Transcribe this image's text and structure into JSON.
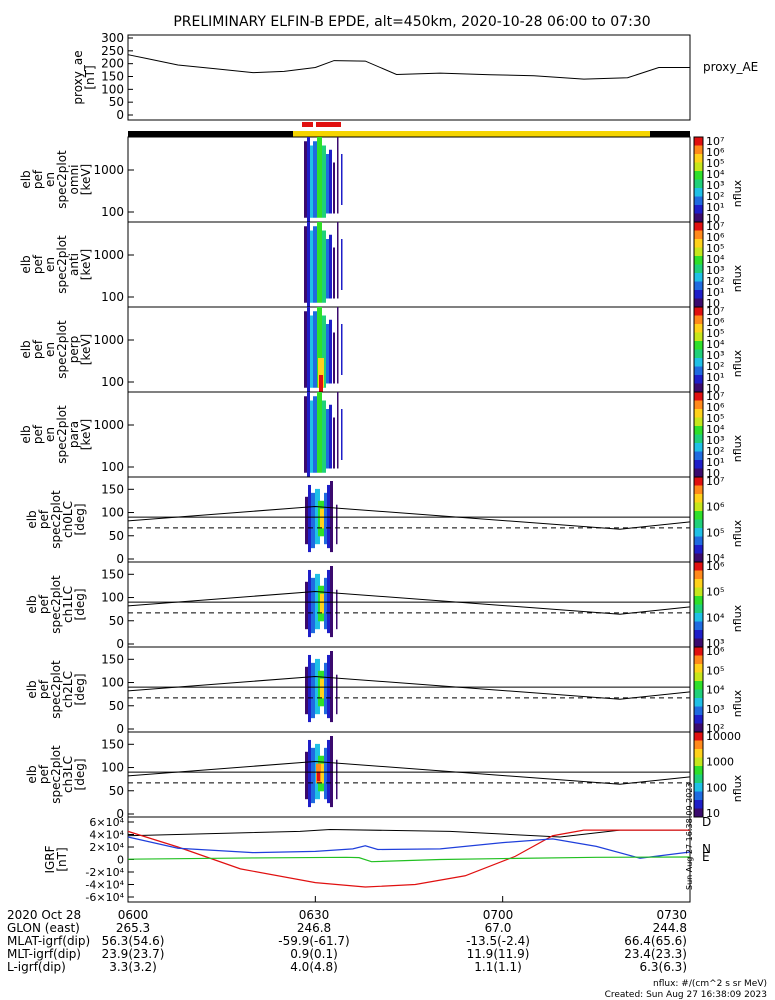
{
  "title": "PRELIMINARY ELFIN-B EPDE, alt=450km, 2020-10-28 06:00 to 07:30",
  "colors": {
    "line": "#000000",
    "red": "#e01010",
    "yellow": "#f5d400",
    "blue": "#1f3fdb",
    "green": "#22c022",
    "bar_black": "#000000"
  },
  "panels": [
    {
      "id": "ae",
      "ylabel": [
        "proxy_ae",
        "[nT]"
      ],
      "yticks": [
        "0",
        "50",
        "100",
        "150",
        "200",
        "250",
        "300"
      ],
      "legend": "proxy_AE"
    },
    {
      "id": "omni",
      "ylabel": [
        "elb",
        "pef",
        "en",
        "spec2plot",
        "omni",
        "[keV]"
      ],
      "yticks": [
        "100",
        "1000"
      ],
      "cbar_ticks": [
        "10",
        "10¹",
        "10²",
        "10³",
        "10⁴",
        "10⁵",
        "10⁶",
        "10⁷"
      ],
      "cbar_label": "nflux"
    },
    {
      "id": "anti",
      "ylabel": [
        "elb",
        "pef",
        "en",
        "spec2plot",
        "anti",
        "[keV]"
      ],
      "yticks": [
        "100",
        "1000"
      ],
      "cbar_ticks": [
        "10",
        "10¹",
        "10²",
        "10³",
        "10⁴",
        "10⁵",
        "10⁶",
        "10⁷"
      ],
      "cbar_label": "nflux"
    },
    {
      "id": "perp",
      "ylabel": [
        "elb",
        "pef",
        "en",
        "spec2plot",
        "perp",
        "[keV]"
      ],
      "yticks": [
        "100",
        "1000"
      ],
      "cbar_ticks": [
        "10",
        "10¹",
        "10²",
        "10³",
        "10⁴",
        "10⁵",
        "10⁶",
        "10⁷"
      ],
      "cbar_label": "nflux"
    },
    {
      "id": "para",
      "ylabel": [
        "elb",
        "pef",
        "en",
        "spec2plot",
        "para",
        "[keV]"
      ],
      "yticks": [
        "100",
        "1000"
      ],
      "cbar_ticks": [
        "10",
        "10¹",
        "10²",
        "10³",
        "10⁴",
        "10⁵",
        "10⁶",
        "10⁷"
      ],
      "cbar_label": "nflux"
    },
    {
      "id": "ch0LC",
      "ylabel": [
        "elb",
        "pef",
        "spec2plot",
        "ch0LC",
        "[deg]"
      ],
      "yticks": [
        "0",
        "50",
        "100",
        "150"
      ],
      "cbar_ticks": [
        "10⁴",
        "10⁵",
        "10⁶",
        "10⁷"
      ],
      "cbar_label": "nflux"
    },
    {
      "id": "ch1LC",
      "ylabel": [
        "elb",
        "pef",
        "spec2plot",
        "ch1LC",
        "[deg]"
      ],
      "yticks": [
        "0",
        "50",
        "100",
        "150"
      ],
      "cbar_ticks": [
        "10³",
        "10⁴",
        "10⁵",
        "10⁶"
      ],
      "cbar_label": "nflux"
    },
    {
      "id": "ch2LC",
      "ylabel": [
        "elb",
        "pef",
        "spec2plot",
        "ch2LC",
        "[deg]"
      ],
      "yticks": [
        "0",
        "50",
        "100",
        "150"
      ],
      "cbar_ticks": [
        "10²",
        "10³",
        "10⁴",
        "10⁵",
        "10⁶"
      ],
      "cbar_label": "nflux"
    },
    {
      "id": "ch3LC",
      "ylabel": [
        "elb",
        "pef",
        "spec2plot",
        "ch3LC",
        "[deg]"
      ],
      "yticks": [
        "0",
        "50",
        "100",
        "150"
      ],
      "cbar_ticks": [
        "10",
        "100",
        "1000",
        "10000"
      ],
      "cbar_label": "nflux"
    },
    {
      "id": "igrf",
      "ylabel": [
        "IGRF",
        "[nT]"
      ],
      "yticks": [
        "-6×10⁴",
        "-4×10⁴",
        "-2×10⁴",
        "0",
        "2×10⁴",
        "4×10⁴",
        "6×10⁴"
      ],
      "legend_letters": [
        "D",
        "N",
        "E"
      ],
      "side_note": "Sun Aug 27 16:38:09 2023"
    }
  ],
  "footer": {
    "rows": [
      {
        "label": "2020 Oct 28",
        "values": [
          "0600",
          "0630",
          "0700",
          "0730"
        ]
      },
      {
        "label": "GLON (east)",
        "values": [
          "265.3",
          "246.8",
          "67.0",
          "244.8"
        ]
      },
      {
        "label": "MLAT-igrf(dip)",
        "values": [
          "56.3(54.6)",
          "-59.9(-61.7)",
          "-13.5(-2.4)",
          "66.4(65.6)"
        ]
      },
      {
        "label": "MLT-igrf(dip)",
        "values": [
          "23.9(23.7)",
          "0.9(0.1)",
          "11.9(11.9)",
          "23.4(23.3)"
        ]
      },
      {
        "label": "L-igrf(dip)",
        "values": [
          "3.3(3.2)",
          "4.0(4.8)",
          "1.1(1.1)",
          "6.3(6.3)"
        ]
      }
    ],
    "units_note": "nflux: #/(cm^2 s sr MeV)",
    "created": "Created: Sun Aug 27 16:38:09 2023"
  },
  "chart_data": {
    "type": "line",
    "x_label_ticks": [
      "0600",
      "0630",
      "0700",
      "0730"
    ],
    "xlim": [
      "06:00",
      "07:30"
    ],
    "series": [
      {
        "name": "proxy_AE",
        "x": [
          "06:00",
          "06:03",
          "06:08",
          "06:14",
          "06:20",
          "06:25",
          "06:30",
          "06:33",
          "06:38",
          "06:43",
          "06:50",
          "06:58",
          "07:05",
          "07:13",
          "07:20",
          "07:25",
          "07:30"
        ],
        "y": [
          235,
          220,
          195,
          180,
          165,
          170,
          185,
          212,
          210,
          158,
          163,
          157,
          153,
          140,
          145,
          185,
          185
        ],
        "ylim": [
          0,
          300
        ]
      },
      {
        "name": "D",
        "x": [
          "06:00",
          "06:08",
          "06:18",
          "06:30",
          "06:38",
          "06:46",
          "06:54",
          "07:02",
          "07:08",
          "07:13",
          "07:20",
          "07:30"
        ],
        "y": [
          45000,
          20000,
          -15000,
          -37000,
          -44000,
          -40000,
          -26000,
          5000,
          38000,
          47000,
          47000,
          47000
        ],
        "ylim": [
          -60000,
          60000
        ]
      },
      {
        "name": "N",
        "x": [
          "06:00",
          "06:08",
          "06:20",
          "06:30",
          "06:36",
          "06:38",
          "06:40",
          "06:50",
          "07:00",
          "07:08",
          "07:15",
          "07:22",
          "07:30"
        ],
        "y": [
          36000,
          18000,
          11000,
          13000,
          17000,
          22000,
          16000,
          17000,
          27000,
          33000,
          21000,
          2000,
          12000
        ],
        "ylim": [
          -60000,
          60000
        ]
      },
      {
        "name": "E",
        "x": [
          "06:00",
          "06:20",
          "06:35",
          "06:37",
          "06:39",
          "06:50",
          "07:00",
          "07:15",
          "07:30"
        ],
        "y": [
          500,
          2500,
          3500,
          3000,
          -3500,
          0,
          1500,
          3500,
          4000
        ],
        "ylim": [
          -60000,
          60000
        ]
      }
    ],
    "loss_cone_panels": [
      "ch0LC",
      "ch1LC",
      "ch2LC",
      "ch3LC"
    ],
    "energy_spectrogram_panels": [
      "omni",
      "anti",
      "perp",
      "para"
    ],
    "colorbar_label": "nflux"
  }
}
